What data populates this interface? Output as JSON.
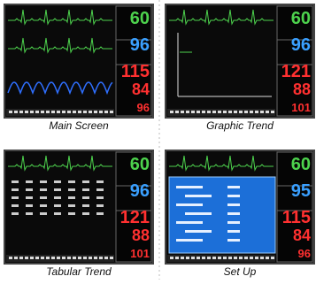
{
  "panels": [
    {
      "caption": "Main Screen",
      "readings": [
        60,
        96,
        115,
        84,
        96
      ]
    },
    {
      "caption": "Graphic Trend",
      "readings": [
        60,
        96,
        121,
        88,
        101
      ]
    },
    {
      "caption": "Tabular Trend",
      "readings": [
        60,
        96,
        121,
        88,
        101
      ]
    },
    {
      "caption": "Set Up",
      "readings": [
        60,
        95,
        115,
        84,
        96
      ]
    }
  ]
}
